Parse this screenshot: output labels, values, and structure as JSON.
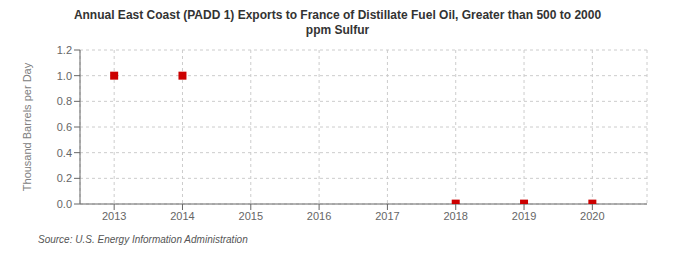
{
  "chart_data": {
    "type": "scatter",
    "title": "Annual East Coast (PADD 1) Exports to France of Distillate Fuel Oil, Greater than 500 to 2000\nppm Sulfur",
    "y_label": "Thousand Barrels per Day",
    "annotations": [
      "Source: U.S. Energy Information Administration"
    ],
    "x": [
      2013,
      2014,
      2015,
      2016,
      2017,
      2018,
      2019,
      2020
    ],
    "values": [
      1.0,
      1.0,
      null,
      null,
      null,
      0.003,
      0.003,
      0.003
    ],
    "color": "#cc0000",
    "marker": "square",
    "xlim": [
      2012.5,
      2020.8
    ],
    "ylim": [
      0.0,
      1.2
    ],
    "xticks": [
      2013,
      2014,
      2015,
      2016,
      2017,
      2018,
      2019,
      2020
    ],
    "yticks": [
      {
        "value": 0.0,
        "label": "0.0"
      },
      0.2,
      0.4,
      0.6,
      0.8,
      {
        "value": 1.0,
        "label": "1.0"
      },
      1.2
    ],
    "grid": true
  }
}
